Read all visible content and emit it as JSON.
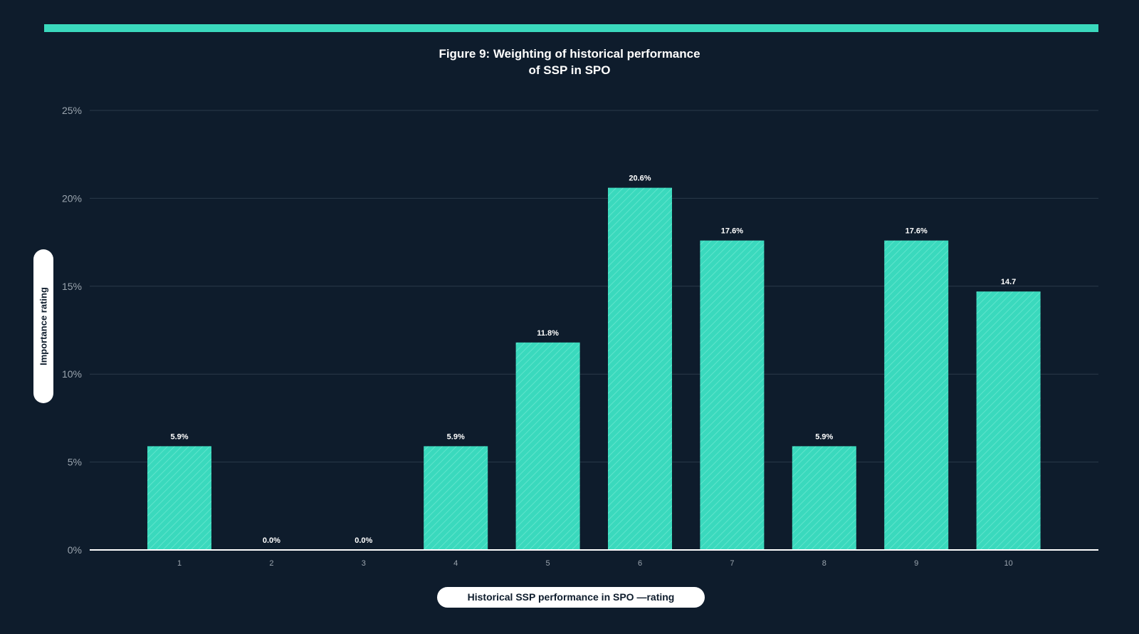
{
  "chart_data": {
    "type": "bar",
    "title": "Figure 9: Weighting of historical performance of SSP in SPO",
    "title_lines": [
      "Figure 9: Weighting of historical performance",
      "of SSP in SPO"
    ],
    "xlabel": "Historical SSP performance in SPO —rating",
    "ylabel": "Importance rating",
    "categories": [
      "1",
      "2",
      "3",
      "4",
      "5",
      "6",
      "7",
      "8",
      "9",
      "10"
    ],
    "values": [
      5.9,
      0.0,
      0.0,
      5.9,
      11.8,
      20.6,
      17.6,
      5.9,
      17.6,
      14.7
    ],
    "data_labels": [
      "5.9%",
      "0.0%",
      "0.0%",
      "5.9%",
      "11.8%",
      "20.6%",
      "17.6%",
      "5.9%",
      "17.6%",
      "14.7"
    ],
    "ylim": [
      0,
      25
    ],
    "yticks": [
      0,
      5,
      10,
      15,
      20,
      25
    ],
    "ytick_labels": [
      "0%",
      "5%",
      "10%",
      "15%",
      "20%",
      "25%"
    ],
    "grid": true,
    "legend": "none",
    "colors": {
      "background": "#0e1c2c",
      "bar": "#3ad9bd",
      "accent": "#3ad9bd",
      "grid": "#2a3a4a",
      "axis": "#ffffff",
      "tick_text": "#9aa4ae",
      "label_text": "#ffffff"
    }
  }
}
